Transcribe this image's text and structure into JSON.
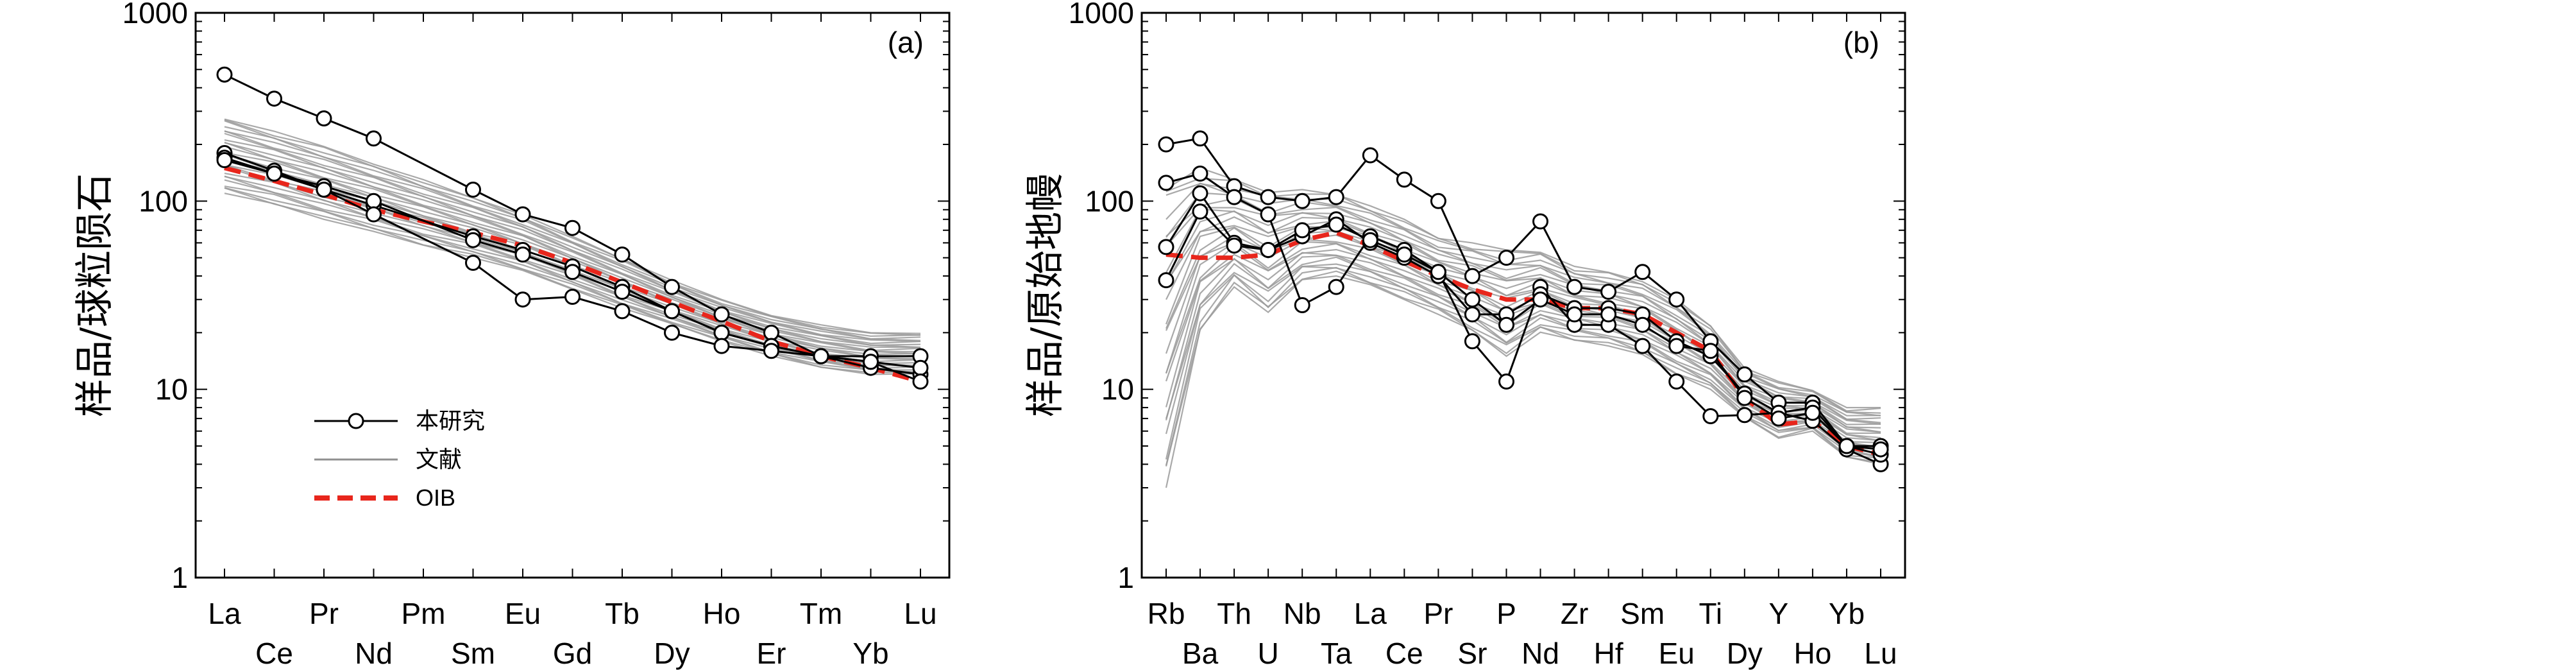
{
  "chart_data": [
    {
      "type": "line",
      "panel_label": "(a)",
      "ylabel": "样品/球粒陨石",
      "xlabel": "",
      "yscale": "log",
      "ylim": [
        1,
        1000
      ],
      "ytick_labels": [
        "1",
        "10",
        "100",
        "1000"
      ],
      "categories": [
        "La",
        "Ce",
        "Pr",
        "Nd",
        "Pm",
        "Sm",
        "Eu",
        "Gd",
        "Tb",
        "Dy",
        "Ho",
        "Er",
        "Tm",
        "Yb",
        "Lu"
      ],
      "grid": false,
      "series": [
        {
          "name": "本研究",
          "role": "sample",
          "values": [
            470,
            350,
            275,
            215,
            null,
            115,
            85,
            72,
            52,
            35,
            25,
            20,
            15,
            15,
            15
          ]
        },
        {
          "name": "本研究",
          "role": "sample",
          "values": [
            180,
            145,
            115,
            95,
            null,
            65,
            55,
            45,
            35,
            26,
            20,
            17,
            15,
            13,
            12
          ]
        },
        {
          "name": "本研究",
          "role": "sample",
          "values": [
            170,
            140,
            120,
            100,
            null,
            62,
            52,
            42,
            33,
            26,
            20,
            17,
            15,
            14,
            13
          ]
        },
        {
          "name": "本研究",
          "role": "sample",
          "values": [
            165,
            140,
            115,
            85,
            null,
            47,
            30,
            31,
            26,
            20,
            17,
            16,
            15,
            14,
            11
          ]
        },
        {
          "name": "OIB",
          "role": "reference",
          "values": [
            150,
            128,
            108,
            90,
            78,
            68,
            58,
            47,
            37,
            29,
            23,
            18,
            15,
            13,
            11
          ]
        }
      ],
      "literature_band": {
        "name": "文献",
        "low": [
          110,
          95,
          80,
          68,
          58,
          50,
          42,
          34,
          27,
          22,
          18,
          15,
          13,
          12,
          12
        ],
        "high": [
          280,
          235,
          195,
          160,
          130,
          105,
          85,
          65,
          50,
          38,
          30,
          25,
          22,
          20,
          20
        ]
      },
      "legend": {
        "position": "lower-left",
        "entries": [
          "本研究",
          "文献",
          "OIB"
        ]
      }
    },
    {
      "type": "line",
      "panel_label": "(b)",
      "ylabel": "样品/原始地幔",
      "xlabel": "",
      "yscale": "log",
      "ylim": [
        1,
        1000
      ],
      "ytick_labels": [
        "1",
        "10",
        "100",
        "1000"
      ],
      "categories": [
        "Rb",
        "Ba",
        "Th",
        "U",
        "Nb",
        "Ta",
        "La",
        "Ce",
        "Pr",
        "Sr",
        "P",
        "Nd",
        "Zr",
        "Hf",
        "Sm",
        "Eu",
        "Ti",
        "Dy",
        "Y",
        "Ho",
        "Yb",
        "Lu"
      ],
      "grid": false,
      "series": [
        {
          "name": "本研究",
          "role": "sample",
          "values": [
            200,
            215,
            120,
            105,
            100,
            105,
            175,
            130,
            100,
            40,
            50,
            78,
            35,
            33,
            42,
            30,
            18,
            12,
            8.5,
            8.5,
            5,
            5
          ]
        },
        {
          "name": "本研究",
          "role": "sample",
          "values": [
            125,
            140,
            105,
            85,
            28,
            35,
            65,
            55,
            42,
            18,
            11,
            35,
            22,
            22,
            17,
            11,
            7.2,
            7.3,
            7.5,
            6.8,
            4.8,
            4
          ]
        },
        {
          "name": "本研究",
          "role": "sample",
          "values": [
            57,
            110,
            60,
            55,
            65,
            80,
            60,
            50,
            40,
            25,
            25,
            32,
            27,
            27,
            25,
            18,
            15,
            9.5,
            7.5,
            8,
            5,
            4.5
          ]
        },
        {
          "name": "本研究",
          "role": "sample",
          "values": [
            38,
            88,
            58,
            55,
            70,
            75,
            62,
            52,
            42,
            30,
            22,
            30,
            25,
            25,
            22,
            17,
            16,
            9,
            7,
            7.5,
            5,
            4.8
          ]
        },
        {
          "name": "OIB",
          "role": "reference",
          "values": [
            52,
            50,
            50,
            52,
            62,
            68,
            58,
            48,
            40,
            34,
            30,
            30,
            27,
            27,
            25,
            20,
            16,
            9,
            6.5,
            6.8,
            5,
            4.5
          ]
        }
      ],
      "literature_band": {
        "name": "文献",
        "low": [
          3,
          20,
          35,
          25,
          38,
          40,
          35,
          30,
          25,
          20,
          15,
          20,
          18,
          17,
          15,
          12,
          10,
          7,
          5.5,
          6,
          4.3,
          4
        ],
        "high": [
          130,
          150,
          130,
          115,
          115,
          110,
          95,
          80,
          65,
          60,
          55,
          55,
          45,
          42,
          38,
          30,
          22,
          13,
          11,
          10,
          8,
          8
        ]
      },
      "legend": null
    }
  ]
}
